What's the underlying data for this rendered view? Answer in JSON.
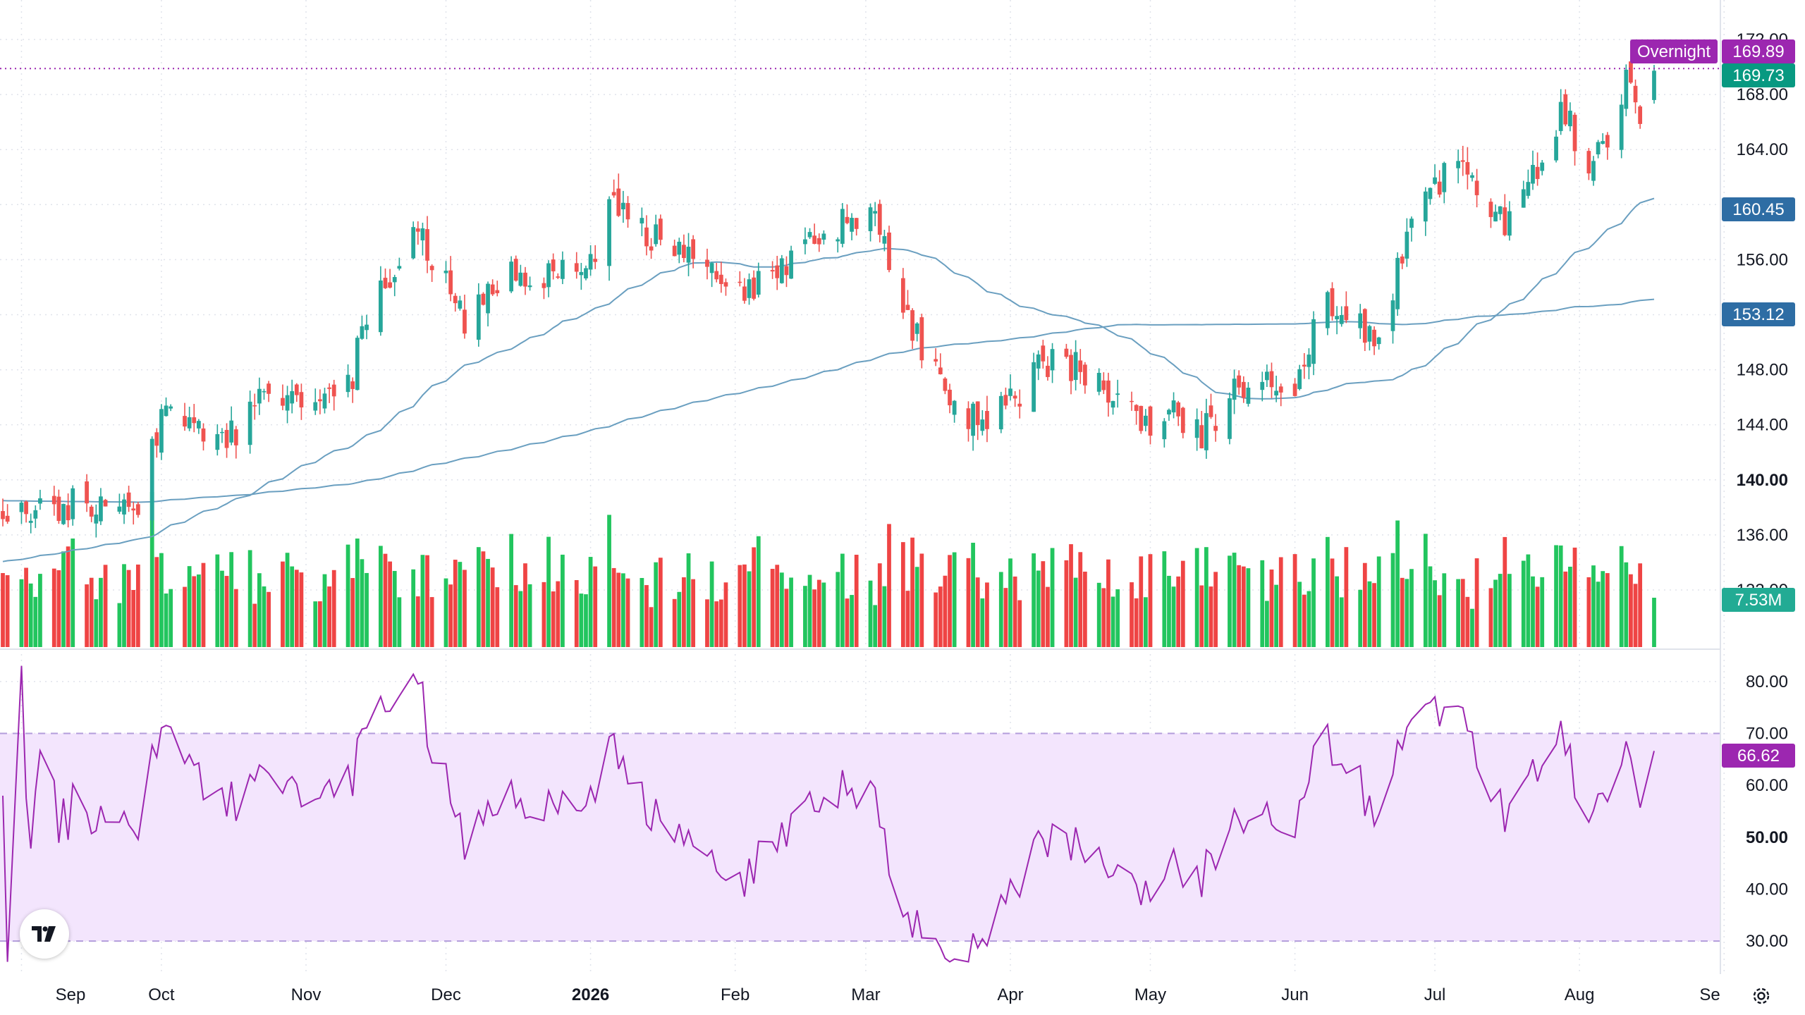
{
  "colors": {
    "up": "#26a69a",
    "down": "#ef5350",
    "vol_up": "#22c55e",
    "vol_down": "#ef4444",
    "ma": "#6a9fc0",
    "rsi_line": "#9c27b0",
    "rsi_band": "#f3e5fd",
    "grid": "#e0e3eb",
    "overnight": "#9c27b0",
    "last_price": "#089981",
    "ma_tag": "#2e6da4"
  },
  "price_axis": {
    "ticks": [
      "172.00",
      "168.00",
      "164.00",
      "160.00",
      "156.00",
      "152.00",
      "148.00",
      "144.00",
      "140.00",
      "136.00",
      "132.00"
    ],
    "bold_tick": "140.00"
  },
  "rsi_axis": {
    "ticks": [
      "80.00",
      "70.00",
      "60.00",
      "50.00",
      "40.00",
      "30.00"
    ],
    "bold_tick": "50.00"
  },
  "time_axis": {
    "labels": [
      "Sep",
      "Oct",
      "Nov",
      "Dec",
      "2026",
      "Feb",
      "Mar",
      "Apr",
      "May",
      "Jun",
      "Jul",
      "Aug",
      "Se"
    ],
    "bold_label": "2026"
  },
  "tags": {
    "overnight_label": "Overnight",
    "overnight_value": "169.89",
    "last_price": "169.73",
    "ma_fast": "160.45",
    "ma_slow": "153.12",
    "volume": "7.53M",
    "rsi": "66.62"
  },
  "chart_data": {
    "type": "candlestick",
    "x_range": [
      "2025-08-28",
      "2026-08-17"
    ],
    "y_range": [
      130,
      172
    ],
    "rsi_range": [
      25,
      85
    ],
    "rsi_bands": [
      30,
      70
    ],
    "months": [
      "Sep",
      "Oct",
      "Nov",
      "Dec",
      "Jan",
      "Feb",
      "Mar",
      "Apr",
      "May",
      "Jun",
      "Jul",
      "Aug"
    ],
    "monthly_closes": [
      138.6,
      145.2,
      148.1,
      151.9,
      156.4,
      156.8,
      148.3,
      147.2,
      145.6,
      153.5,
      161.7,
      169.7
    ],
    "anchors": [
      {
        "date": "2025-08-28",
        "close": 137.5
      },
      {
        "date": "2025-09-15",
        "close": 138.6
      },
      {
        "date": "2025-09-26",
        "close": 137.5
      },
      {
        "date": "2025-10-01",
        "close": 145.2
      },
      {
        "date": "2025-10-15",
        "close": 142.8
      },
      {
        "date": "2025-10-24",
        "close": 146.2
      },
      {
        "date": "2025-10-31",
        "close": 144.8
      },
      {
        "date": "2025-11-10",
        "close": 146.5
      },
      {
        "date": "2025-11-14",
        "close": 151.8
      },
      {
        "date": "2025-11-25",
        "close": 158.7
      },
      {
        "date": "2025-12-05",
        "close": 151.2
      },
      {
        "date": "2025-12-15",
        "close": 155.3
      },
      {
        "date": "2025-12-31",
        "close": 155.0
      },
      {
        "date": "2026-01-05",
        "close": 160.0
      },
      {
        "date": "2026-01-20",
        "close": 156.5
      },
      {
        "date": "2026-02-02",
        "close": 153.8
      },
      {
        "date": "2026-02-23",
        "close": 158.3
      },
      {
        "date": "2026-03-02",
        "close": 159.8
      },
      {
        "date": "2026-03-10",
        "close": 152.0
      },
      {
        "date": "2026-03-20",
        "close": 145.0
      },
      {
        "date": "2026-03-27",
        "close": 144.0
      },
      {
        "date": "2026-04-03",
        "close": 146.5
      },
      {
        "date": "2026-04-10",
        "close": 149.0
      },
      {
        "date": "2026-04-20",
        "close": 147.5
      },
      {
        "date": "2026-05-01",
        "close": 143.5
      },
      {
        "date": "2026-05-05",
        "close": 144.7
      },
      {
        "date": "2026-05-12",
        "close": 143.5
      },
      {
        "date": "2026-05-20",
        "close": 147.0
      },
      {
        "date": "2026-06-01",
        "close": 146.3
      },
      {
        "date": "2026-06-08",
        "close": 153.5
      },
      {
        "date": "2026-06-18",
        "close": 150.0
      },
      {
        "date": "2026-06-29",
        "close": 161.0
      },
      {
        "date": "2026-07-06",
        "close": 162.5
      },
      {
        "date": "2026-07-16",
        "close": 158.5
      },
      {
        "date": "2026-07-24",
        "close": 163.5
      },
      {
        "date": "2026-07-28",
        "close": 167.0
      },
      {
        "date": "2026-08-04",
        "close": 162.5
      },
      {
        "date": "2026-08-11",
        "close": 168.8
      },
      {
        "date": "2026-08-14",
        "close": 167.0
      },
      {
        "date": "2026-08-17",
        "close": 169.73
      }
    ],
    "ma_fast_last": 160.45,
    "ma_slow_last": 153.12,
    "last_volume_millions": 7.53,
    "rsi_last": 66.62
  }
}
